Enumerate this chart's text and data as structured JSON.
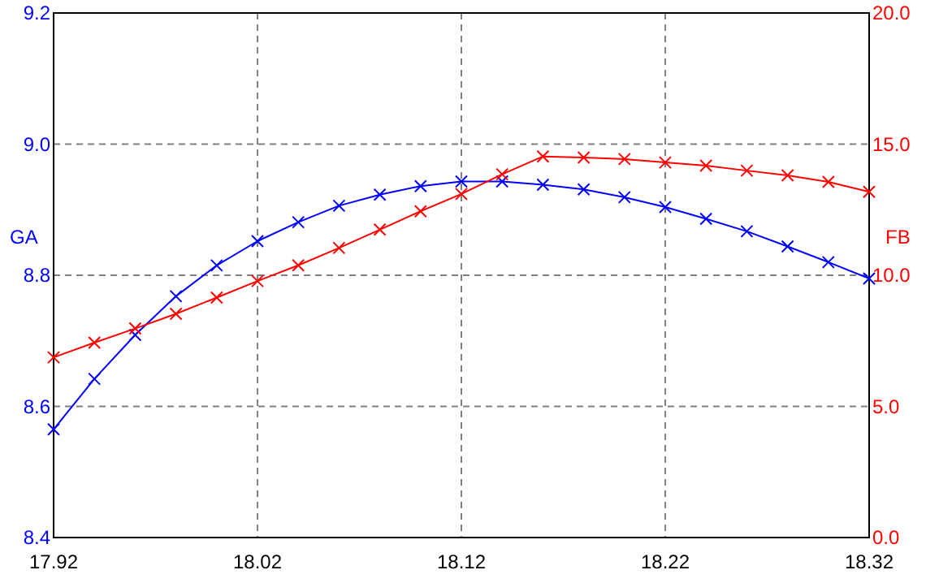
{
  "chart_data": {
    "type": "line",
    "ylabel": "GA",
    "y2label": "FB",
    "x": [
      17.92,
      17.94,
      17.96,
      17.98,
      18.0,
      18.02,
      18.04,
      18.06,
      18.08,
      18.1,
      18.12,
      18.14,
      18.16,
      18.18,
      18.2,
      18.22,
      18.24,
      18.26,
      18.28,
      18.3,
      18.32
    ],
    "series": [
      {
        "color": "#0000ff",
        "values": [
          8.565,
          8.642,
          8.709,
          8.768,
          8.815,
          8.852,
          8.881,
          8.906,
          8.923,
          8.936,
          8.943,
          8.943,
          8.938,
          8.931,
          8.919,
          8.904,
          8.886,
          8.867,
          8.844,
          8.82,
          8.795
        ]
      },
      {
        "color": "#ff0000",
        "axis": "y2",
        "values": [
          6.87,
          7.43,
          7.97,
          8.53,
          9.15,
          9.78,
          10.38,
          11.04,
          11.74,
          12.44,
          13.1,
          13.85,
          14.53,
          14.49,
          14.43,
          14.3,
          14.18,
          13.99,
          13.81,
          13.56,
          13.18
        ]
      }
    ],
    "xlim": [
      17.92,
      18.32
    ],
    "xticks": [
      17.92,
      18.02,
      18.12,
      18.22,
      18.32
    ],
    "ylim": [
      8.4,
      9.2
    ],
    "yticks": [
      {
        "value": 8.4,
        "label": "8.4"
      },
      {
        "value": 8.6,
        "label": "8.6"
      },
      {
        "value": 8.8,
        "label": "8.8"
      },
      {
        "value": 9.0,
        "label": "9.0"
      },
      {
        "value": 9.2,
        "label": "9.2"
      }
    ],
    "y2lim": [
      0,
      20
    ],
    "y2ticks": [
      {
        "value": 0,
        "label": "0.0"
      },
      {
        "value": 5,
        "label": "5.0"
      },
      {
        "value": 10,
        "label": "10.0"
      },
      {
        "value": 15,
        "label": "15.0"
      },
      {
        "value": 20,
        "label": "20.0"
      }
    ],
    "grid": true,
    "marker": "cross",
    "line_style": "solid"
  }
}
